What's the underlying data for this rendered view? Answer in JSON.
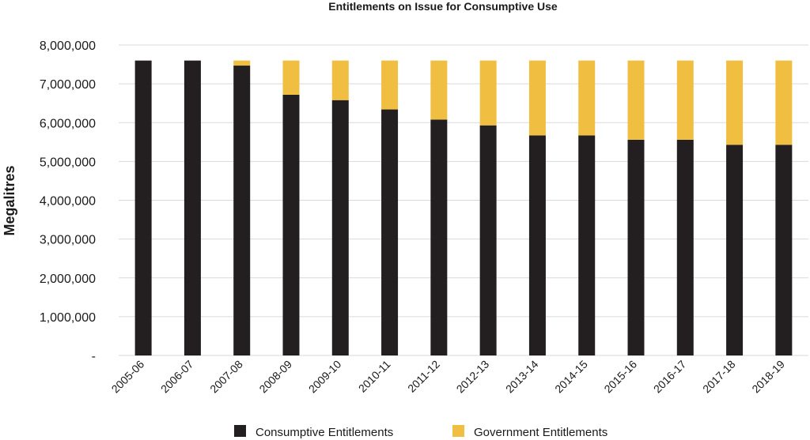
{
  "chart_data": {
    "type": "bar",
    "stacked": true,
    "title": "Entitlements on Issue for Consumptive Use",
    "xlabel": "",
    "ylabel": "Megalitres",
    "ylim": [
      0,
      8000000
    ],
    "yticks": [
      0,
      1000000,
      2000000,
      3000000,
      4000000,
      5000000,
      6000000,
      7000000,
      8000000
    ],
    "ytick_labels": [
      "-",
      "1,000,000",
      "2,000,000",
      "3,000,000",
      "4,000,000",
      "5,000,000",
      "6,000,000",
      "7,000,000",
      "8,000,000"
    ],
    "grid": true,
    "legend_position": "bottom",
    "categories": [
      "2005-06",
      "2006-07",
      "2007-08",
      "2008-09",
      "2009-10",
      "2010-11",
      "2011-12",
      "2012-13",
      "2013-14",
      "2014-15",
      "2015-16",
      "2016-17",
      "2017-18",
      "2018-19"
    ],
    "series": [
      {
        "name": "Consumptive Entitlements",
        "color": "#231f20",
        "values": [
          7600000,
          7600000,
          7470000,
          6720000,
          6580000,
          6340000,
          6080000,
          5930000,
          5670000,
          5670000,
          5560000,
          5560000,
          5430000,
          5430000
        ]
      },
      {
        "name": "Government Entitlements",
        "color": "#f0be41",
        "values": [
          0,
          0,
          130000,
          880000,
          1020000,
          1260000,
          1520000,
          1670000,
          1930000,
          1930000,
          2040000,
          2040000,
          2170000,
          2170000
        ]
      }
    ]
  }
}
